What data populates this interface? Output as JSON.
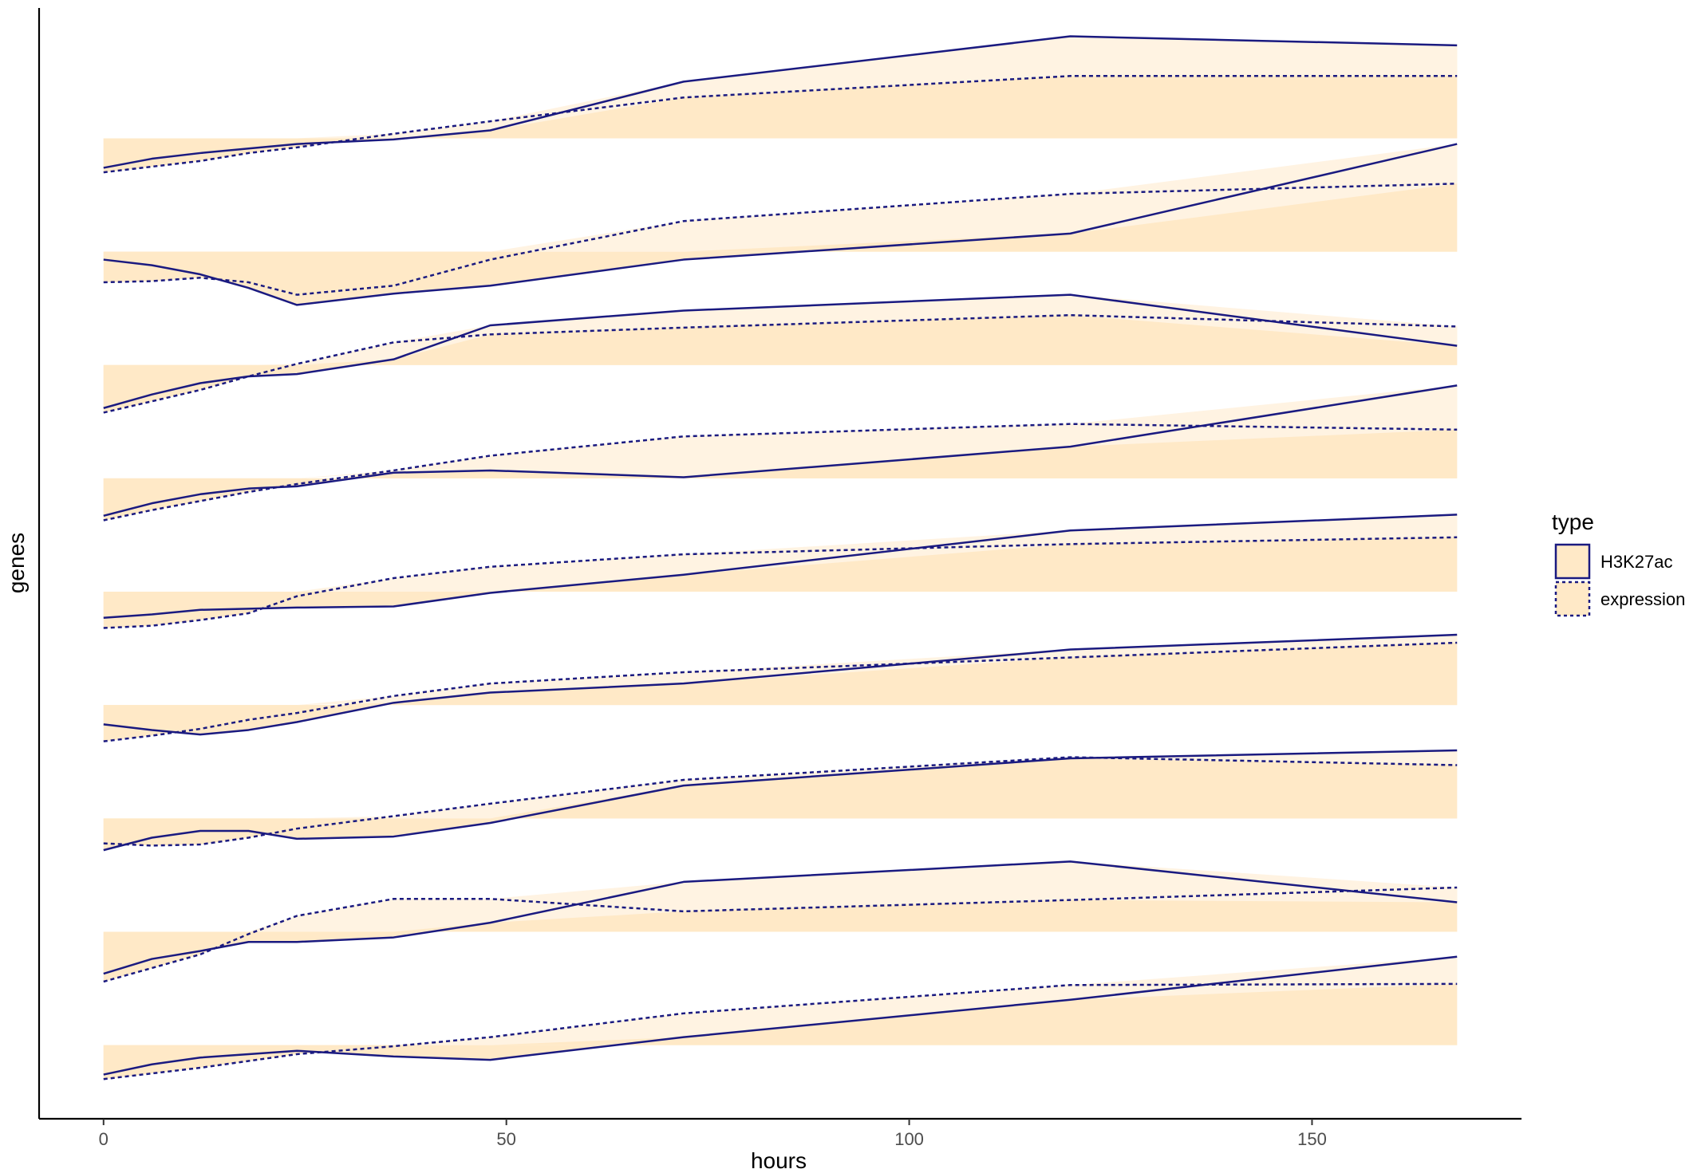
{
  "chart_data": {
    "type": "line",
    "xlabel": "hours",
    "ylabel": "genes",
    "xlim": [
      -8,
      176
    ],
    "x_ticks": [
      0,
      50,
      100,
      150
    ],
    "ylim": [
      -0.65,
      9.15
    ],
    "grid": false,
    "legend": {
      "title": "type",
      "position": "right",
      "entries": [
        {
          "label": "H3K27ac",
          "linetype": "solid"
        },
        {
          "label": "expression",
          "linetype": "dotted"
        }
      ]
    },
    "colors": {
      "line": "#1a1a80",
      "fill": "#ffe9c7",
      "fill_between": "#fff3e2"
    },
    "genes": [
      {
        "h3k27ac": [
          [
            0,
            -0.26
          ],
          [
            6,
            -0.18
          ],
          [
            12,
            -0.13
          ],
          [
            18,
            -0.09
          ],
          [
            24,
            -0.05
          ],
          [
            36,
            -0.01
          ],
          [
            48,
            0.07
          ],
          [
            72,
            0.5
          ],
          [
            120,
            0.9
          ],
          [
            168,
            0.82
          ]
        ],
        "expression": [
          [
            0,
            -0.3
          ],
          [
            6,
            -0.25
          ],
          [
            12,
            -0.2
          ],
          [
            18,
            -0.13
          ],
          [
            24,
            -0.08
          ],
          [
            36,
            0.04
          ],
          [
            48,
            0.15
          ],
          [
            72,
            0.36
          ],
          [
            120,
            0.55
          ],
          [
            168,
            0.55
          ]
        ]
      },
      {
        "h3k27ac": [
          [
            0,
            -0.07
          ],
          [
            6,
            -0.12
          ],
          [
            12,
            -0.2
          ],
          [
            18,
            -0.32
          ],
          [
            24,
            -0.47
          ],
          [
            36,
            -0.37
          ],
          [
            48,
            -0.3
          ],
          [
            72,
            -0.07
          ],
          [
            120,
            0.16
          ],
          [
            168,
            0.95
          ]
        ],
        "expression": [
          [
            0,
            -0.27
          ],
          [
            6,
            -0.26
          ],
          [
            12,
            -0.23
          ],
          [
            18,
            -0.27
          ],
          [
            24,
            -0.38
          ],
          [
            36,
            -0.3
          ],
          [
            48,
            -0.07
          ],
          [
            72,
            0.27
          ],
          [
            120,
            0.51
          ],
          [
            168,
            0.6
          ]
        ]
      },
      {
        "h3k27ac": [
          [
            0,
            -0.38
          ],
          [
            6,
            -0.26
          ],
          [
            12,
            -0.16
          ],
          [
            18,
            -0.1
          ],
          [
            24,
            -0.08
          ],
          [
            36,
            0.05
          ],
          [
            48,
            0.35
          ],
          [
            72,
            0.48
          ],
          [
            120,
            0.62
          ],
          [
            168,
            0.17
          ]
        ],
        "expression": [
          [
            0,
            -0.42
          ],
          [
            6,
            -0.32
          ],
          [
            12,
            -0.22
          ],
          [
            18,
            -0.1
          ],
          [
            24,
            0.01
          ],
          [
            36,
            0.2
          ],
          [
            48,
            0.27
          ],
          [
            72,
            0.33
          ],
          [
            120,
            0.44
          ],
          [
            168,
            0.34
          ]
        ]
      },
      {
        "h3k27ac": [
          [
            0,
            -0.33
          ],
          [
            6,
            -0.22
          ],
          [
            12,
            -0.14
          ],
          [
            18,
            -0.09
          ],
          [
            24,
            -0.07
          ],
          [
            36,
            0.05
          ],
          [
            48,
            0.07
          ],
          [
            72,
            0.01
          ],
          [
            120,
            0.28
          ],
          [
            168,
            0.82
          ]
        ],
        "expression": [
          [
            0,
            -0.37
          ],
          [
            6,
            -0.28
          ],
          [
            12,
            -0.2
          ],
          [
            18,
            -0.12
          ],
          [
            24,
            -0.05
          ],
          [
            36,
            0.07
          ],
          [
            48,
            0.2
          ],
          [
            72,
            0.37
          ],
          [
            120,
            0.48
          ],
          [
            168,
            0.43
          ]
        ]
      },
      {
        "h3k27ac": [
          [
            0,
            -0.23
          ],
          [
            6,
            -0.2
          ],
          [
            12,
            -0.16
          ],
          [
            18,
            -0.15
          ],
          [
            24,
            -0.14
          ],
          [
            36,
            -0.13
          ],
          [
            48,
            -0.01
          ],
          [
            72,
            0.15
          ],
          [
            120,
            0.54
          ],
          [
            168,
            0.68
          ]
        ],
        "expression": [
          [
            0,
            -0.32
          ],
          [
            6,
            -0.3
          ],
          [
            12,
            -0.25
          ],
          [
            18,
            -0.19
          ],
          [
            24,
            -0.04
          ],
          [
            36,
            0.12
          ],
          [
            48,
            0.22
          ],
          [
            72,
            0.33
          ],
          [
            120,
            0.42
          ],
          [
            168,
            0.48
          ]
        ]
      },
      {
        "h3k27ac": [
          [
            0,
            -0.17
          ],
          [
            6,
            -0.22
          ],
          [
            12,
            -0.26
          ],
          [
            18,
            -0.22
          ],
          [
            24,
            -0.15
          ],
          [
            36,
            0.02
          ],
          [
            48,
            0.11
          ],
          [
            72,
            0.19
          ],
          [
            120,
            0.49
          ],
          [
            168,
            0.62
          ]
        ],
        "expression": [
          [
            0,
            -0.32
          ],
          [
            6,
            -0.27
          ],
          [
            12,
            -0.21
          ],
          [
            18,
            -0.13
          ],
          [
            24,
            -0.07
          ],
          [
            36,
            0.08
          ],
          [
            48,
            0.19
          ],
          [
            72,
            0.29
          ],
          [
            120,
            0.42
          ],
          [
            168,
            0.55
          ]
        ]
      },
      {
        "h3k27ac": [
          [
            0,
            -0.28
          ],
          [
            6,
            -0.17
          ],
          [
            12,
            -0.11
          ],
          [
            18,
            -0.11
          ],
          [
            24,
            -0.18
          ],
          [
            36,
            -0.16
          ],
          [
            48,
            -0.04
          ],
          [
            72,
            0.29
          ],
          [
            120,
            0.53
          ],
          [
            168,
            0.6
          ]
        ],
        "expression": [
          [
            0,
            -0.22
          ],
          [
            6,
            -0.24
          ],
          [
            12,
            -0.23
          ],
          [
            18,
            -0.17
          ],
          [
            24,
            -0.09
          ],
          [
            36,
            0.02
          ],
          [
            48,
            0.13
          ],
          [
            72,
            0.34
          ],
          [
            120,
            0.54
          ],
          [
            168,
            0.47
          ]
        ]
      },
      {
        "h3k27ac": [
          [
            0,
            -0.37
          ],
          [
            6,
            -0.24
          ],
          [
            12,
            -0.17
          ],
          [
            18,
            -0.09
          ],
          [
            24,
            -0.09
          ],
          [
            36,
            -0.05
          ],
          [
            48,
            0.08
          ],
          [
            72,
            0.44
          ],
          [
            120,
            0.62
          ],
          [
            168,
            0.26
          ]
        ],
        "expression": [
          [
            0,
            -0.44
          ],
          [
            6,
            -0.32
          ],
          [
            12,
            -0.2
          ],
          [
            18,
            -0.02
          ],
          [
            24,
            0.14
          ],
          [
            36,
            0.29
          ],
          [
            48,
            0.29
          ],
          [
            72,
            0.18
          ],
          [
            120,
            0.28
          ],
          [
            168,
            0.39
          ]
        ]
      },
      {
        "h3k27ac": [
          [
            0,
            -0.26
          ],
          [
            6,
            -0.17
          ],
          [
            12,
            -0.11
          ],
          [
            18,
            -0.08
          ],
          [
            24,
            -0.05
          ],
          [
            36,
            -0.1
          ],
          [
            48,
            -0.13
          ],
          [
            72,
            0.07
          ],
          [
            120,
            0.4
          ],
          [
            168,
            0.78
          ]
        ],
        "expression": [
          [
            0,
            -0.3
          ],
          [
            6,
            -0.25
          ],
          [
            12,
            -0.2
          ],
          [
            18,
            -0.14
          ],
          [
            24,
            -0.08
          ],
          [
            36,
            -0.01
          ],
          [
            48,
            0.07
          ],
          [
            72,
            0.28
          ],
          [
            120,
            0.53
          ],
          [
            168,
            0.54
          ]
        ]
      }
    ]
  }
}
